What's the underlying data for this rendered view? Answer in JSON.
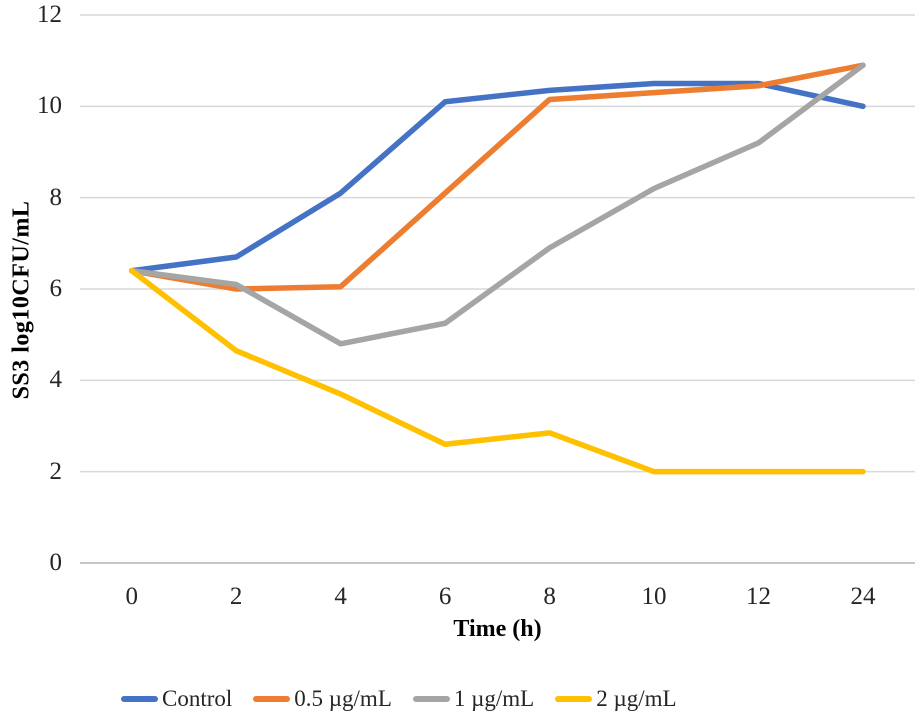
{
  "figure": {
    "y_axis_title": "SS3 log10CFU/mL",
    "x_axis_title": "Time (h)"
  },
  "chart_data": {
    "type": "line",
    "x_labels": [
      "0",
      "2",
      "4",
      "6",
      "8",
      "10",
      "12",
      "24"
    ],
    "y_ticks": [
      0,
      2,
      4,
      6,
      8,
      10,
      12
    ],
    "ylim": [
      0,
      12
    ],
    "xlabel": "Time (h)",
    "ylabel": "SS3 log10CFU/mL",
    "grid": "horizontal",
    "gridline_color": "#D9D9D9",
    "axis_line_color": "#BFBFBF",
    "legend_position": "bottom",
    "series": [
      {
        "name": "Control",
        "color": "#4472C4",
        "values": [
          6.4,
          6.7,
          8.1,
          10.1,
          10.35,
          10.5,
          10.5,
          10.0
        ]
      },
      {
        "name": "0.5 µg/mL",
        "color": "#ED7D31",
        "values": [
          6.4,
          6.0,
          6.05,
          8.1,
          10.15,
          10.3,
          10.45,
          10.9
        ]
      },
      {
        "name": "1 µg/mL",
        "color": "#A5A5A5",
        "values": [
          6.4,
          6.1,
          4.8,
          5.25,
          6.9,
          8.2,
          9.2,
          10.9
        ]
      },
      {
        "name": "2 µg/mL",
        "color": "#FFC000",
        "values": [
          6.4,
          4.65,
          3.7,
          2.6,
          2.85,
          2.0,
          2.0,
          2.0
        ]
      }
    ]
  }
}
